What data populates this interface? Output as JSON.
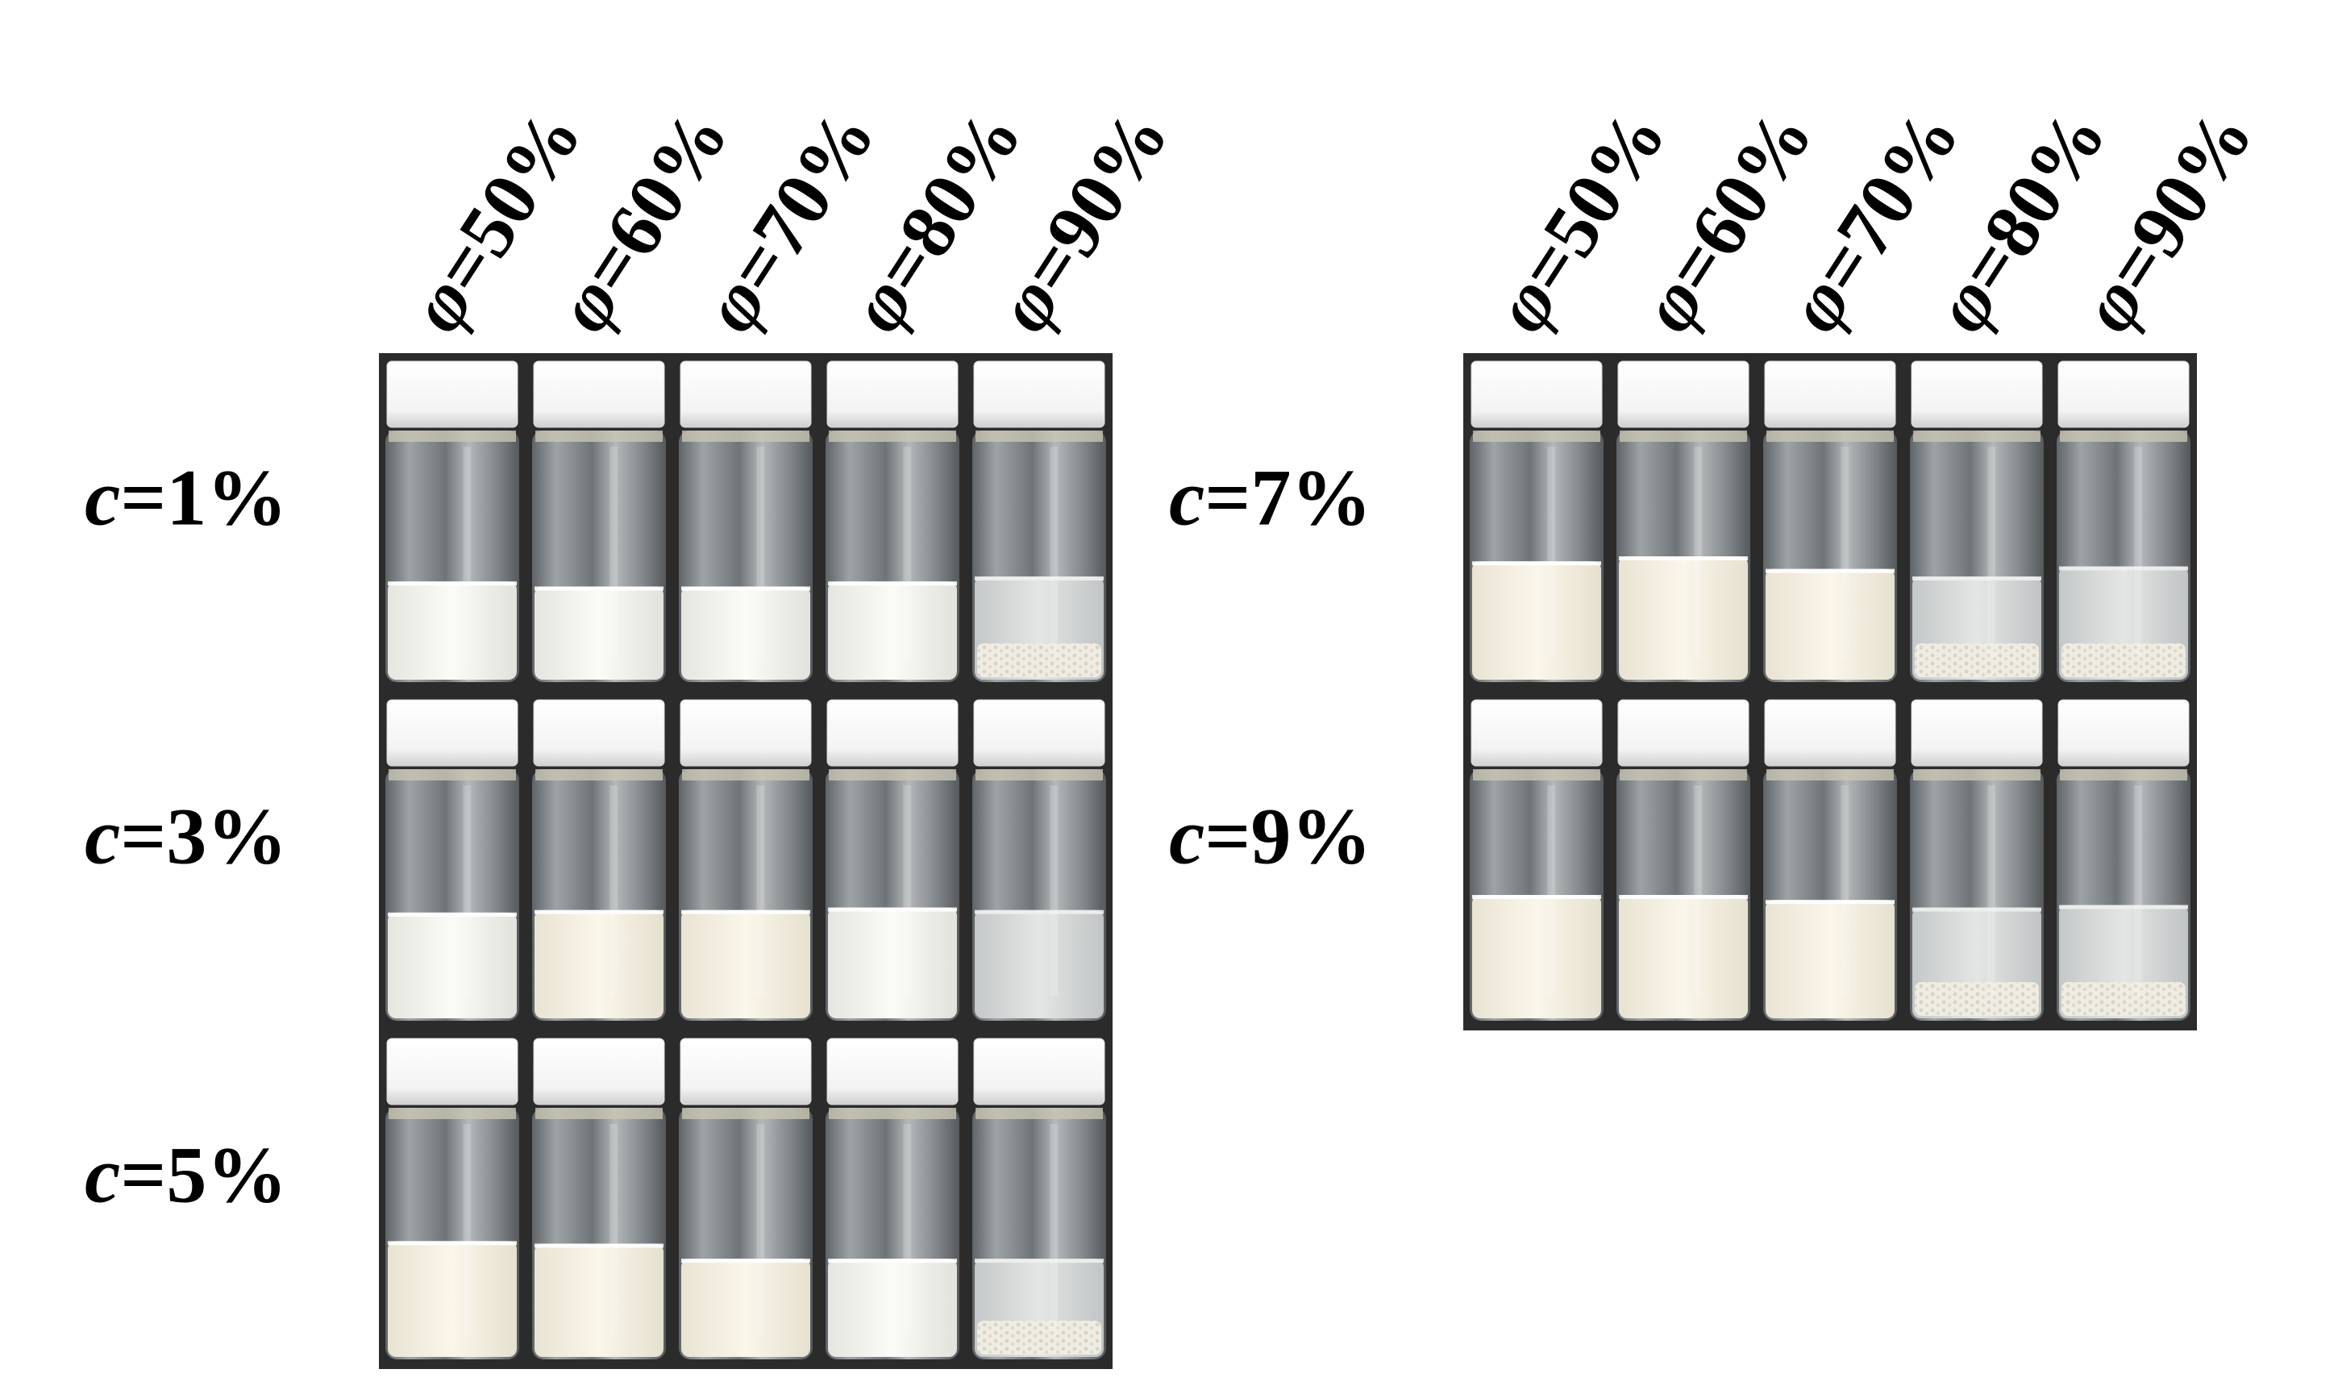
{
  "figure": {
    "left_panel": {
      "column_labels": [
        {
          "symbol": "φ",
          "text": "=50%"
        },
        {
          "symbol": "φ",
          "text": "=60%"
        },
        {
          "symbol": "φ",
          "text": "=70%"
        },
        {
          "symbol": "φ",
          "text": "=80%"
        },
        {
          "symbol": "φ",
          "text": "=90%"
        }
      ],
      "rows": [
        {
          "label_var": "c",
          "label_text": "=1%",
          "vials": [
            {
              "fill_fraction": 0.4,
              "cream": false
            },
            {
              "fill_fraction": 0.38,
              "cream": false
            },
            {
              "fill_fraction": 0.38,
              "cream": false
            },
            {
              "fill_fraction": 0.4,
              "cream": false
            },
            {
              "fill_fraction": 0.42,
              "cream": false,
              "translucent": true,
              "sediment": true
            }
          ]
        },
        {
          "label_var": "c",
          "label_text": "=3%",
          "vials": [
            {
              "fill_fraction": 0.43,
              "cream": false
            },
            {
              "fill_fraction": 0.44,
              "cream": true
            },
            {
              "fill_fraction": 0.44,
              "cream": true
            },
            {
              "fill_fraction": 0.45,
              "cream": false
            },
            {
              "fill_fraction": 0.44,
              "cream": false,
              "translucent": true,
              "sediment": false
            }
          ]
        },
        {
          "label_var": "c",
          "label_text": "=5%",
          "vials": [
            {
              "fill_fraction": 0.47,
              "cream": true
            },
            {
              "fill_fraction": 0.46,
              "cream": true
            },
            {
              "fill_fraction": 0.4,
              "cream": true
            },
            {
              "fill_fraction": 0.4,
              "cream": false
            },
            {
              "fill_fraction": 0.4,
              "cream": false,
              "translucent": true,
              "sediment": true
            }
          ]
        }
      ]
    },
    "right_panel": {
      "column_labels": [
        {
          "symbol": "φ",
          "text": "=50%"
        },
        {
          "symbol": "φ",
          "text": "=60%"
        },
        {
          "symbol": "φ",
          "text": "=70%"
        },
        {
          "symbol": "φ",
          "text": "=80%"
        },
        {
          "symbol": "φ",
          "text": "=90%"
        }
      ],
      "rows": [
        {
          "label_var": "c",
          "label_text": "=7%",
          "vials": [
            {
              "fill_fraction": 0.48,
              "cream": true
            },
            {
              "fill_fraction": 0.5,
              "cream": true
            },
            {
              "fill_fraction": 0.45,
              "cream": true
            },
            {
              "fill_fraction": 0.42,
              "cream": false,
              "translucent": true,
              "sediment": true
            },
            {
              "fill_fraction": 0.46,
              "cream": false,
              "translucent": true,
              "sediment": true
            }
          ]
        },
        {
          "label_var": "c",
          "label_text": "=9%",
          "vials": [
            {
              "fill_fraction": 0.5,
              "cream": true
            },
            {
              "fill_fraction": 0.5,
              "cream": true
            },
            {
              "fill_fraction": 0.48,
              "cream": true
            },
            {
              "fill_fraction": 0.45,
              "cream": false,
              "translucent": true,
              "sediment": true
            },
            {
              "fill_fraction": 0.46,
              "cream": false,
              "translucent": true,
              "sediment": true
            }
          ]
        }
      ]
    },
    "colors": {
      "background": "#ffffff",
      "frame": "#2b2b2b",
      "cap": "#f7f7f7",
      "glass_empty": "#8d9194",
      "emulsion_white": "#f2f2ee",
      "emulsion_cream": "#f4efe2",
      "translucent_phase": "#d9dcdc",
      "sediment": "#e9e6dc"
    }
  }
}
